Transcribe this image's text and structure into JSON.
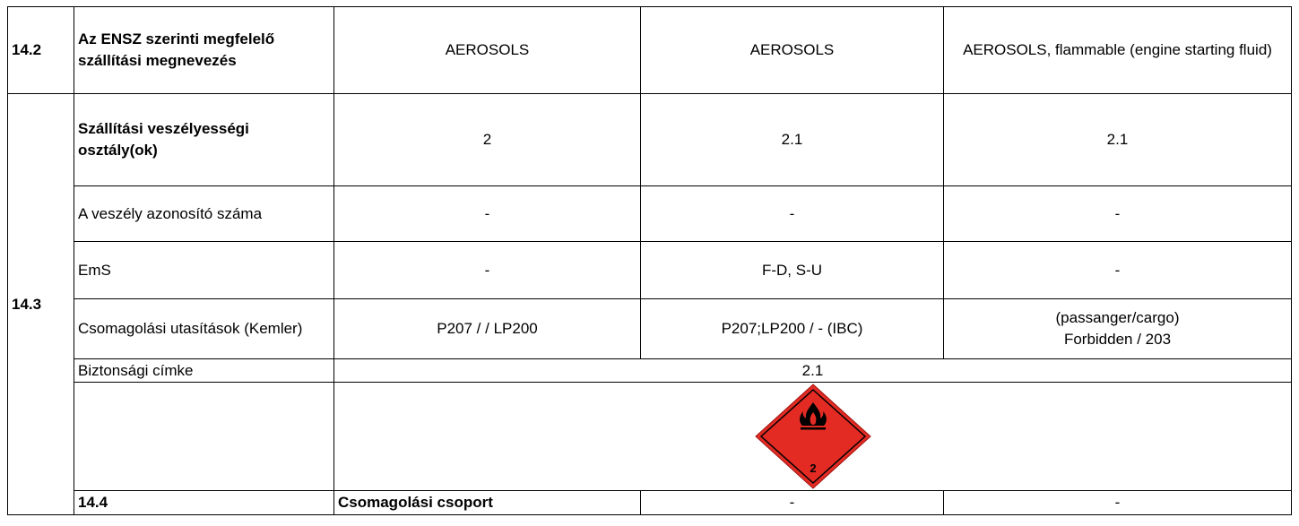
{
  "rows": {
    "r142": {
      "num": "14.2",
      "label": "Az ENSZ szerinti megfelelő szállítási megnevezés",
      "c1": "AEROSOLS",
      "c2": "AEROSOLS",
      "c3": "AEROSOLS, flammable (engine starting fluid)"
    },
    "r143": {
      "num": "14.3",
      "class": {
        "label": "Szállítási veszélyességi osztály(ok)",
        "c1": "2",
        "c2": "2.1",
        "c3": "2.1"
      },
      "hazard_id": {
        "label": "A veszély azonosító száma",
        "c1": "-",
        "c2": "-",
        "c3": "-"
      },
      "ems": {
        "label": "EmS",
        "c1": "-",
        "c2": "F-D, S-U",
        "c3": "-"
      },
      "packing": {
        "label": "Csomagolási utasítások (Kemler)",
        "c1": "P207 / / LP200",
        "c2": "P207;LP200 / - (IBC)",
        "c3_line1": "(passanger/cargo)",
        "c3_line2": "Forbidden / 203"
      },
      "safety_label": {
        "label": "Biztonsági címke",
        "value": "2.1"
      },
      "placard": {
        "icon": "flammable-gas-diamond-icon",
        "number": "2",
        "color": "#e32b24"
      }
    },
    "r144": {
      "num": "14.4",
      "label": "Csomagolási csoport",
      "c1": "-",
      "c2": "-",
      "c3": "-"
    }
  }
}
